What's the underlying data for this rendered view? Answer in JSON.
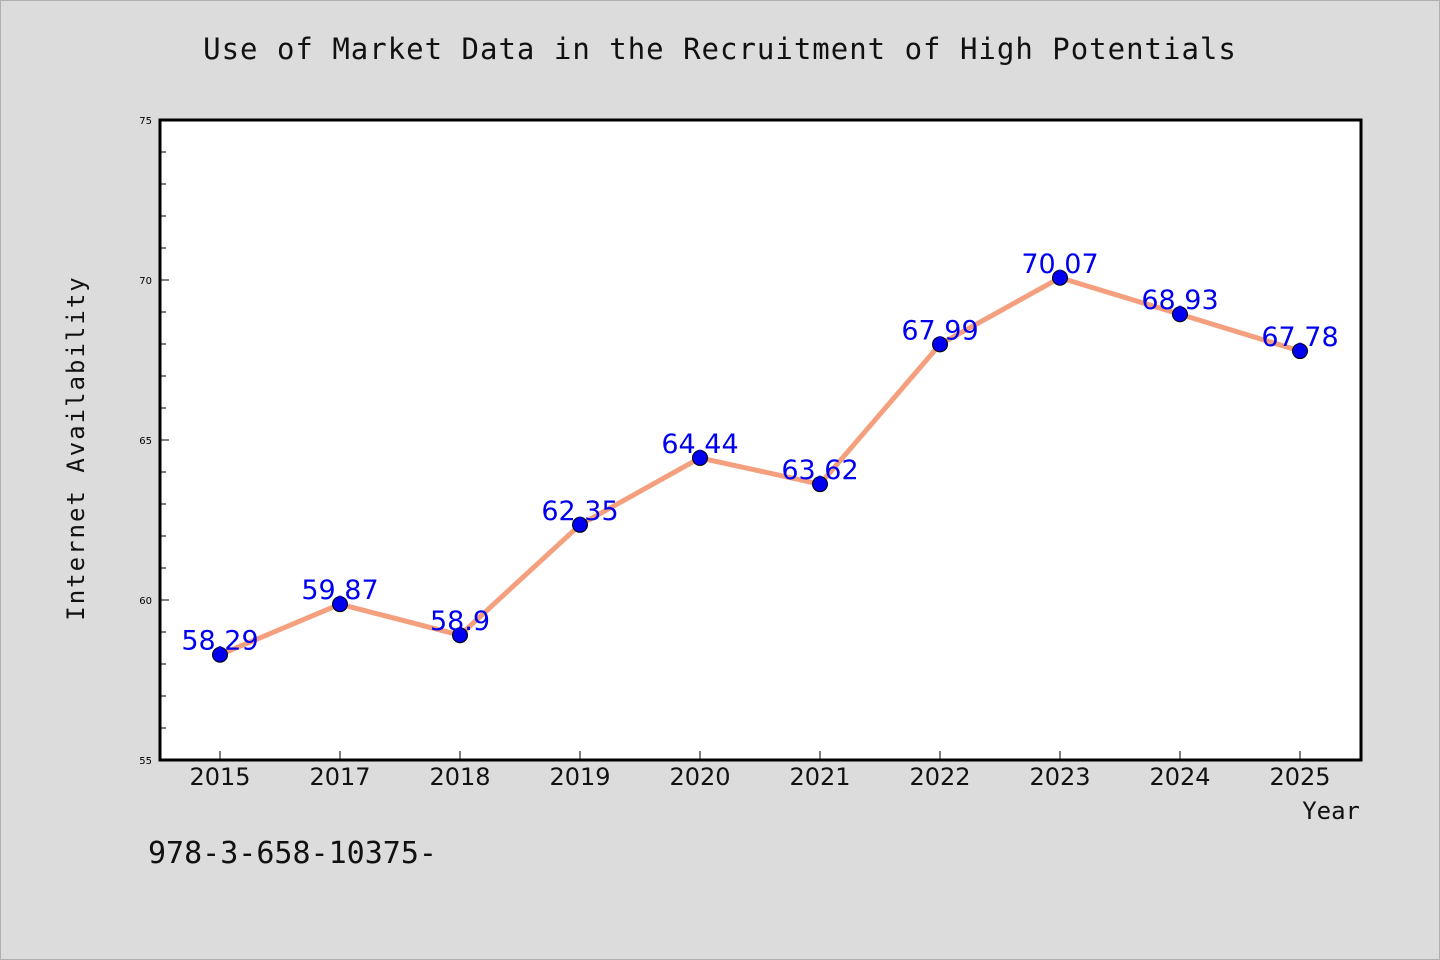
{
  "chart_data": {
    "type": "line",
    "title": "Use of Market Data in the Recruitment of High Potentials",
    "xlabel": "Year",
    "ylabel": "Internet Availability",
    "categories": [
      "2015",
      "2017",
      "2018",
      "2019",
      "2020",
      "2021",
      "2022",
      "2023",
      "2024",
      "2025"
    ],
    "values": [
      58.29,
      59.87,
      58.9,
      62.35,
      64.44,
      63.62,
      67.99,
      70.07,
      68.93,
      67.78
    ],
    "data_labels": [
      "58.29",
      "59.87",
      "58.9",
      "62.35",
      "64.44",
      "63.62",
      "67.99",
      "70.07",
      "68.93",
      "67.78"
    ],
    "ylim": [
      55,
      75
    ],
    "yticks": [
      55,
      60,
      65,
      70,
      75
    ],
    "grid": false,
    "colors": {
      "line": "#f4a07e",
      "marker": "#0000ee",
      "label": "#0000ee",
      "background": "#dcdcdc",
      "plot_background": "#ffffff"
    }
  },
  "footnote": "978-3-658-10375-"
}
